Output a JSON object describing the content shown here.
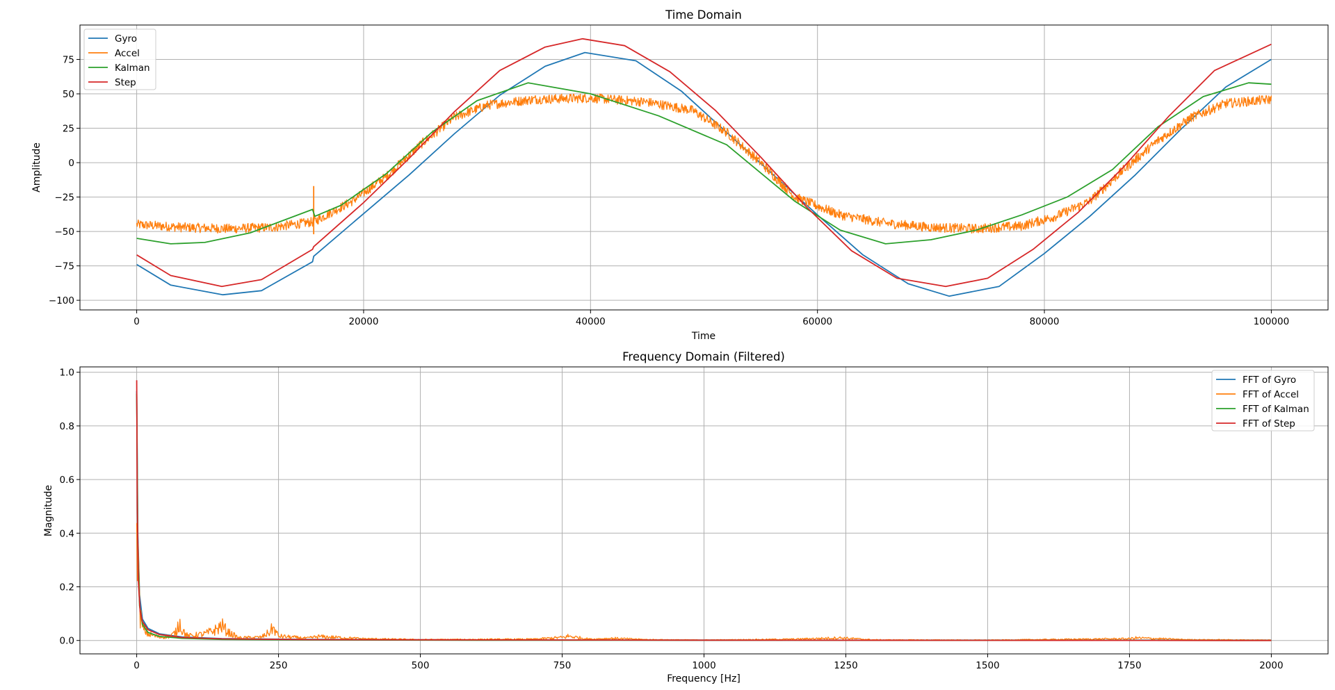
{
  "colors": {
    "blue": "#1f77b4",
    "orange": "#ff7f0e",
    "green": "#2ca02c",
    "red": "#d62728",
    "grid": "#b0b0b0"
  },
  "chart_data": [
    {
      "type": "line",
      "title": "Time Domain",
      "xlabel": "Time",
      "ylabel": "Amplitude",
      "xlim": [
        -5000,
        105000
      ],
      "ylim": [
        -107,
        100
      ],
      "xticks": [
        0,
        20000,
        40000,
        60000,
        80000,
        100000
      ],
      "xtick_labels": [
        "0",
        "20000",
        "40000",
        "60000",
        "80000",
        "100000"
      ],
      "yticks": [
        -100,
        -75,
        -50,
        -25,
        0,
        25,
        50,
        75
      ],
      "ytick_labels": [
        "−100",
        "−75",
        "−50",
        "−25",
        "0",
        "25",
        "50",
        "75"
      ],
      "grid": true,
      "legend_position": "upper-left",
      "series": [
        {
          "name": "Gyro",
          "color": "#1f77b4",
          "x": [
            0,
            3000,
            7600,
            11000,
            15500,
            15600,
            20000,
            24000,
            28000,
            32000,
            36000,
            39500,
            44000,
            48000,
            52000,
            56000,
            60000,
            64000,
            68000,
            71600,
            76000,
            80000,
            84000,
            88000,
            92000,
            96000,
            100000
          ],
          "y": [
            -74,
            -89,
            -96,
            -93,
            -72,
            -68,
            -37,
            -9,
            21,
            49,
            70,
            80,
            74,
            52,
            22,
            -8,
            -38,
            -67,
            -88,
            -97,
            -90,
            -66,
            -39,
            -9,
            24,
            55,
            75
          ]
        },
        {
          "name": "Accel",
          "color": "#ff7f0e",
          "noisy": true,
          "noise_amplitude": 3.5,
          "spike": {
            "x": 15600,
            "y_min": -52,
            "y_max": -17
          },
          "x": [
            0,
            4000,
            8000,
            12000,
            15600,
            19000,
            22000,
            25000,
            28000,
            31000,
            35000,
            40000,
            45000,
            49000,
            52000,
            55000,
            58000,
            62000,
            66000,
            70000,
            74000,
            78000,
            81000,
            84000,
            87000,
            90000,
            93000,
            96000,
            100000
          ],
          "y": [
            -45,
            -47,
            -48,
            -47,
            -43,
            -28,
            -10,
            13,
            33,
            42,
            46,
            47,
            44,
            38,
            22,
            0,
            -25,
            -38,
            -44,
            -47,
            -48,
            -46,
            -39,
            -28,
            -5,
            16,
            33,
            43,
            46
          ]
        },
        {
          "name": "Kalman",
          "color": "#2ca02c",
          "x": [
            0,
            3000,
            6000,
            10000,
            15500,
            15700,
            18000,
            22000,
            26000,
            30000,
            34500,
            40000,
            46000,
            52000,
            58000,
            62000,
            66000,
            70000,
            74000,
            78000,
            82000,
            86000,
            90000,
            94000,
            98000,
            100000
          ],
          "y": [
            -55,
            -59,
            -58,
            -51,
            -34,
            -39,
            -31,
            -8,
            22,
            45,
            58,
            50,
            34,
            13,
            -28,
            -49,
            -59,
            -56,
            -49,
            -38,
            -25,
            -5,
            26,
            48,
            58,
            57
          ]
        },
        {
          "name": "Step",
          "color": "#d62728",
          "x": [
            0,
            3000,
            7500,
            11000,
            15500,
            15600,
            20000,
            24000,
            28000,
            32000,
            36000,
            39300,
            43000,
            47000,
            51000,
            55000,
            59000,
            63000,
            67000,
            71300,
            75000,
            79000,
            83000,
            87000,
            91000,
            95000,
            100000
          ],
          "y": [
            -67,
            -82,
            -90,
            -85,
            -63,
            -61,
            -29,
            3,
            37,
            67,
            84,
            90,
            85,
            66,
            38,
            4,
            -32,
            -64,
            -84,
            -90,
            -84,
            -63,
            -36,
            -3,
            34,
            67,
            86
          ]
        }
      ]
    },
    {
      "type": "line",
      "title": "Frequency Domain (Filtered)",
      "xlabel": "Frequency [Hz]",
      "ylabel": "Magnitude",
      "xlim": [
        -100,
        2100
      ],
      "ylim": [
        -0.05,
        1.02
      ],
      "xticks": [
        0,
        250,
        500,
        750,
        1000,
        1250,
        1500,
        1750,
        2000
      ],
      "xtick_labels": [
        "0",
        "250",
        "500",
        "750",
        "1000",
        "1250",
        "1500",
        "1750",
        "2000"
      ],
      "yticks": [
        0.0,
        0.2,
        0.4,
        0.6,
        0.8,
        1.0
      ],
      "ytick_labels": [
        "0.0",
        "0.2",
        "0.4",
        "0.6",
        "0.8",
        "1.0"
      ],
      "grid": true,
      "legend_position": "upper-right",
      "series": [
        {
          "name": "FFT of Gyro",
          "color": "#1f77b4",
          "x": [
            0,
            2,
            5,
            10,
            20,
            40,
            80,
            150,
            300,
            600,
            1000,
            2000
          ],
          "y": [
            0.93,
            0.4,
            0.17,
            0.08,
            0.045,
            0.025,
            0.013,
            0.007,
            0.004,
            0.002,
            0.001,
            0.001
          ]
        },
        {
          "name": "FFT of Accel",
          "color": "#ff7f0e",
          "noisy": true,
          "x": [
            0,
            2,
            5,
            10,
            20,
            40,
            60,
            70,
            75,
            80,
            90,
            120,
            140,
            150,
            160,
            180,
            220,
            235,
            240,
            250,
            300,
            320,
            400,
            500,
            700,
            755,
            760,
            800,
            840,
            900,
            1000,
            1160,
            1240,
            1300,
            1500,
            1750,
            1760,
            1850,
            2000
          ],
          "y": [
            0.9,
            0.4,
            0.15,
            0.06,
            0.03,
            0.015,
            0.02,
            0.04,
            0.09,
            0.05,
            0.02,
            0.03,
            0.05,
            0.07,
            0.04,
            0.012,
            0.015,
            0.04,
            0.06,
            0.02,
            0.01,
            0.018,
            0.008,
            0.004,
            0.006,
            0.015,
            0.02,
            0.006,
            0.01,
            0.004,
            0.002,
            0.006,
            0.012,
            0.003,
            0.002,
            0.008,
            0.012,
            0.004,
            0.002
          ]
        },
        {
          "name": "FFT of Kalman",
          "color": "#2ca02c",
          "x": [
            0,
            2,
            5,
            10,
            20,
            40,
            80,
            150,
            300,
            600,
            1000,
            2000
          ],
          "y": [
            0.92,
            0.35,
            0.13,
            0.06,
            0.03,
            0.015,
            0.008,
            0.004,
            0.002,
            0.001,
            0.001,
            0.0
          ]
        },
        {
          "name": "FFT of Step",
          "color": "#d62728",
          "x": [
            0,
            1,
            3,
            6,
            10,
            20,
            40,
            80,
            150,
            300,
            600,
            1000,
            2000
          ],
          "y": [
            0.97,
            0.5,
            0.22,
            0.11,
            0.07,
            0.04,
            0.022,
            0.011,
            0.006,
            0.003,
            0.002,
            0.001,
            0.0
          ]
        }
      ]
    }
  ]
}
